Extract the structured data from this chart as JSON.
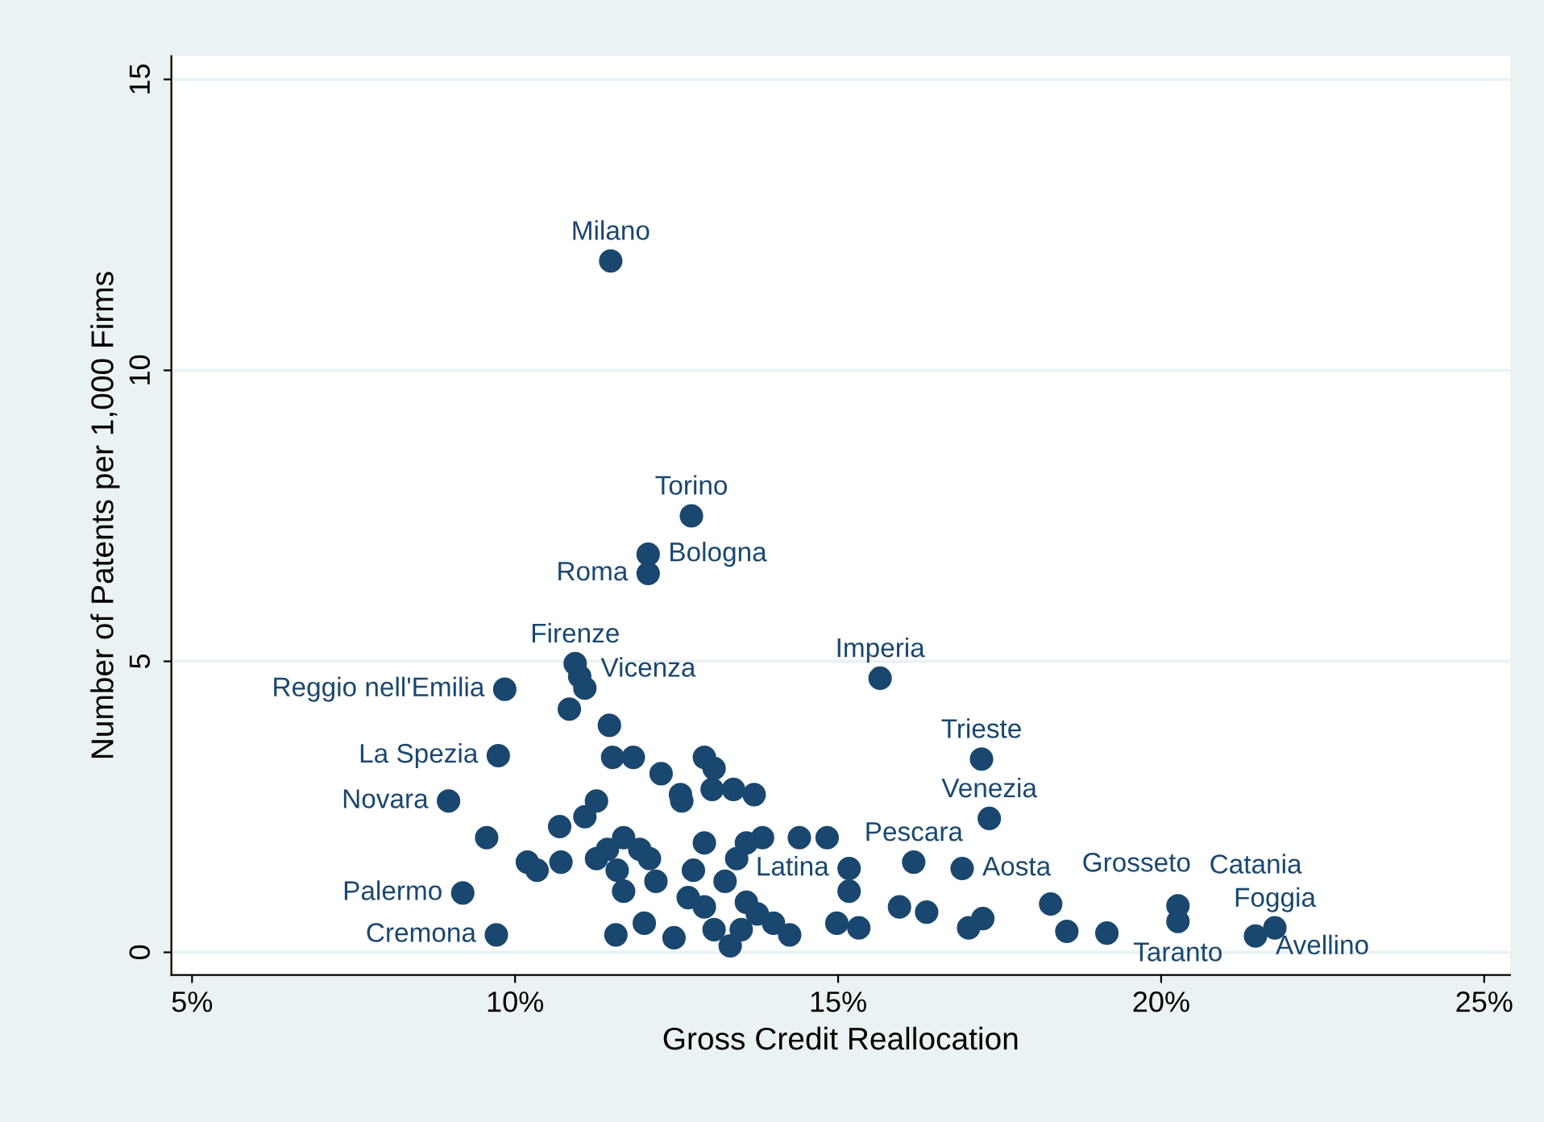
{
  "chart_data": {
    "type": "scatter",
    "xlabel": "Gross Credit Reallocation",
    "ylabel": "Number of Patents per 1,000 Firms",
    "xlim": [
      4.68,
      25.4
    ],
    "ylim": [
      -0.39,
      15.4
    ],
    "xticks": [
      {
        "value": 5,
        "label": "5%"
      },
      {
        "value": 10,
        "label": "10%"
      },
      {
        "value": 15,
        "label": "15%"
      },
      {
        "value": 20,
        "label": "20%"
      },
      {
        "value": 25,
        "label": "25%"
      }
    ],
    "yticks": [
      0,
      5,
      10,
      15
    ],
    "grid": "y",
    "marker": "circle",
    "series": [
      {
        "color": "#1a476f",
        "x": [
          11.48,
          12.73,
          12.06,
          12.06,
          15.65,
          17.22,
          17.34,
          10.93,
          11.0,
          11.08,
          10.84,
          9.84,
          9.74,
          8.97,
          9.19,
          9.71,
          16.17,
          16.92,
          15.17,
          18.29,
          20.26,
          20.26,
          21.76,
          21.46,
          18.54,
          19.16,
          17.02,
          17.24,
          15.95,
          16.37,
          14.98,
          15.32,
          15.17,
          14.4,
          14.83,
          13.7,
          13.38,
          13.05,
          13.83,
          12.93,
          13.58,
          14.0,
          14.25,
          13.33,
          12.58,
          11.46,
          11.51,
          11.83,
          12.26,
          12.93,
          13.08,
          12.56,
          11.26,
          9.56,
          10.69,
          11.08,
          10.19,
          10.34,
          10.71,
          11.43,
          11.68,
          11.93,
          11.26,
          11.58,
          12.08,
          12.18,
          11.68,
          12.76,
          13.43,
          13.25,
          12.68,
          12.93,
          13.58,
          13.75,
          11.56,
          12.46,
          12.0,
          13.08,
          13.5
        ],
        "values": [
          11.88,
          7.5,
          6.84,
          6.51,
          4.71,
          3.32,
          2.3,
          4.96,
          4.74,
          4.54,
          4.18,
          4.52,
          3.38,
          2.6,
          1.02,
          0.3,
          1.55,
          1.44,
          1.44,
          0.83,
          0.8,
          0.53,
          0.42,
          0.28,
          0.36,
          0.33,
          0.42,
          0.58,
          0.78,
          0.69,
          0.5,
          0.42,
          1.05,
          1.97,
          1.97,
          2.71,
          2.8,
          2.8,
          1.97,
          1.88,
          1.88,
          0.5,
          0.3,
          0.11,
          2.6,
          3.9,
          3.35,
          3.35,
          3.07,
          3.35,
          3.16,
          2.71,
          2.6,
          1.97,
          2.16,
          2.33,
          1.55,
          1.41,
          1.55,
          1.77,
          1.97,
          1.77,
          1.61,
          1.41,
          1.61,
          1.22,
          1.05,
          1.41,
          1.61,
          1.22,
          0.94,
          0.78,
          0.86,
          0.66,
          0.3,
          0.25,
          0.5,
          0.39,
          0.39
        ]
      }
    ],
    "annotations": [
      {
        "text": "Milano",
        "x": 11.48,
        "y": 11.88
      },
      {
        "text": "Torino",
        "x": 12.73,
        "y": 7.5
      },
      {
        "text": "Bologna",
        "x": 12.06,
        "y": 6.84
      },
      {
        "text": "Roma",
        "x": 12.06,
        "y": 6.51
      },
      {
        "text": "Imperia",
        "x": 15.65,
        "y": 4.71
      },
      {
        "text": "Trieste",
        "x": 17.22,
        "y": 3.32
      },
      {
        "text": "Venezia",
        "x": 17.34,
        "y": 2.3
      },
      {
        "text": "Firenze",
        "x": 10.93,
        "y": 4.96
      },
      {
        "text": "Vicenza",
        "x": 10.84,
        "y": 4.18
      },
      {
        "text": "Reggio nell'Emilia",
        "x": 9.84,
        "y": 4.52
      },
      {
        "text": "La Spezia",
        "x": 9.74,
        "y": 3.38
      },
      {
        "text": "Novara",
        "x": 8.97,
        "y": 2.6
      },
      {
        "text": "Palermo",
        "x": 9.19,
        "y": 1.02
      },
      {
        "text": "Cremona",
        "x": 9.71,
        "y": 0.3
      },
      {
        "text": "Pescara",
        "x": 16.17,
        "y": 1.55
      },
      {
        "text": "Aosta",
        "x": 16.92,
        "y": 1.44
      },
      {
        "text": "Latina",
        "x": 15.17,
        "y": 1.44
      },
      {
        "text": "Grosseto",
        "x": 18.29,
        "y": 0.83
      },
      {
        "text": "Catania",
        "x": 20.26,
        "y": 0.8
      },
      {
        "text": "Taranto",
        "x": 20.26,
        "y": 0.53
      },
      {
        "text": "Foggia",
        "x": 21.76,
        "y": 0.42
      },
      {
        "text": "Avellino",
        "x": 21.46,
        "y": 0.28
      }
    ]
  }
}
